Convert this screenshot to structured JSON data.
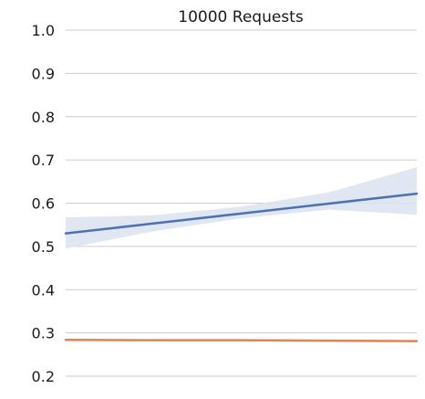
{
  "chart_data": {
    "type": "line",
    "title": "10000 Requests",
    "xlabel": "",
    "ylabel": "",
    "ylim": [
      0.2,
      1.0
    ],
    "y_ticks": [
      "0.2",
      "0.3",
      "0.4",
      "0.5",
      "0.6",
      "0.7",
      "0.8",
      "0.9",
      "1.0"
    ],
    "grid": true,
    "legend": "none",
    "x": [
      0,
      0.25,
      0.5,
      0.75,
      1
    ],
    "series": [
      {
        "color": "#4c72b0",
        "band_color": "#dbe3f1",
        "values": [
          0.53,
          0.553,
          0.576,
          0.599,
          0.622
        ],
        "lower": [
          0.495,
          0.535,
          0.565,
          0.585,
          0.573
        ],
        "upper": [
          0.567,
          0.572,
          0.592,
          0.625,
          0.683
        ]
      },
      {
        "color": "#dd8452",
        "values": [
          0.284,
          0.283,
          0.283,
          0.282,
          0.281
        ]
      }
    ],
    "grid_color": "#cccccc"
  }
}
